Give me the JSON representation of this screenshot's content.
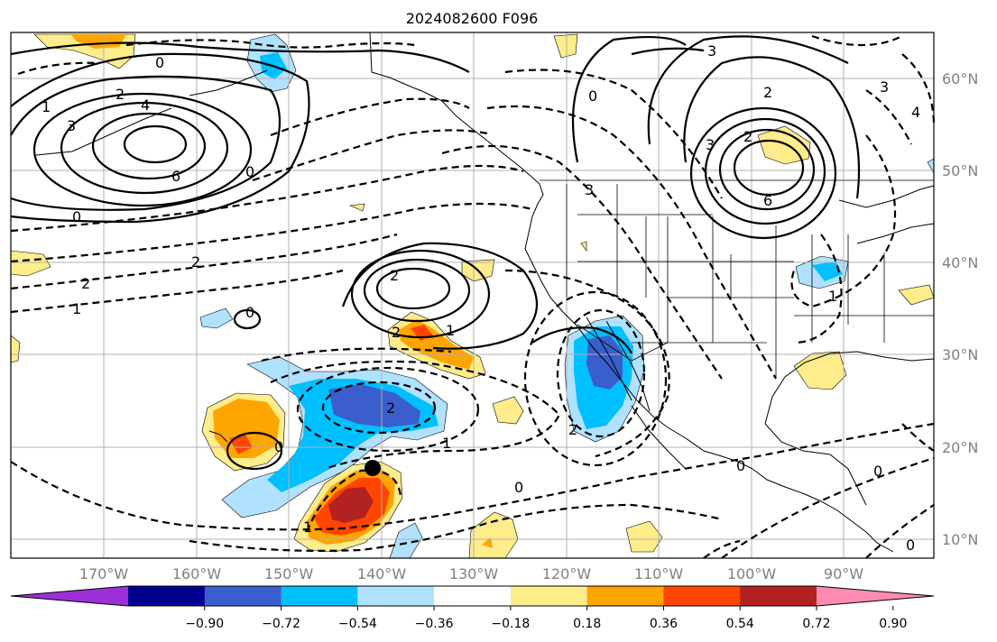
{
  "title": "2024082600 F096",
  "lat_labels": [
    "60°N",
    "50°N",
    "40°N",
    "30°N",
    "20°N",
    "10°N"
  ],
  "lon_labels": [
    "170°W",
    "160°W",
    "150°W",
    "140°W",
    "130°W",
    "120°W",
    "110°W",
    "100°W",
    "90°W"
  ],
  "colorbar": {
    "tick_labels": [
      "−0.90",
      "−0.72",
      "−0.54",
      "−0.36",
      "−0.18",
      "0.18",
      "0.36",
      "0.54",
      "0.72",
      "0.90"
    ],
    "colors": [
      "#9b30d9",
      "#000090",
      "#3a5fcd",
      "#00bfff",
      "#b0e2ff",
      "#ffffff",
      "#ffec8b",
      "#ffa500",
      "#ff4500",
      "#b22222",
      "#ff8cb0"
    ]
  },
  "contour_labels": {
    "w_pacific_low": [
      "1",
      "3",
      "4",
      "6",
      "2",
      "0"
    ],
    "n_pacific": [
      "0",
      "0",
      "2",
      "2",
      "1"
    ],
    "central_high": [
      "2",
      "2",
      "1",
      "0"
    ],
    "central_low": [
      "2",
      "1"
    ],
    "south": [
      "0",
      "1",
      "0"
    ],
    "baja": [
      "2"
    ],
    "eastern_high": [
      "3",
      "2",
      "3",
      "6",
      "2",
      "3",
      "0"
    ],
    "east": [
      "0",
      "0",
      "4",
      "1",
      "0"
    ],
    "nw": [
      "0",
      "3"
    ]
  },
  "marker": {
    "lat": 17.8,
    "lon": -139.5
  }
}
